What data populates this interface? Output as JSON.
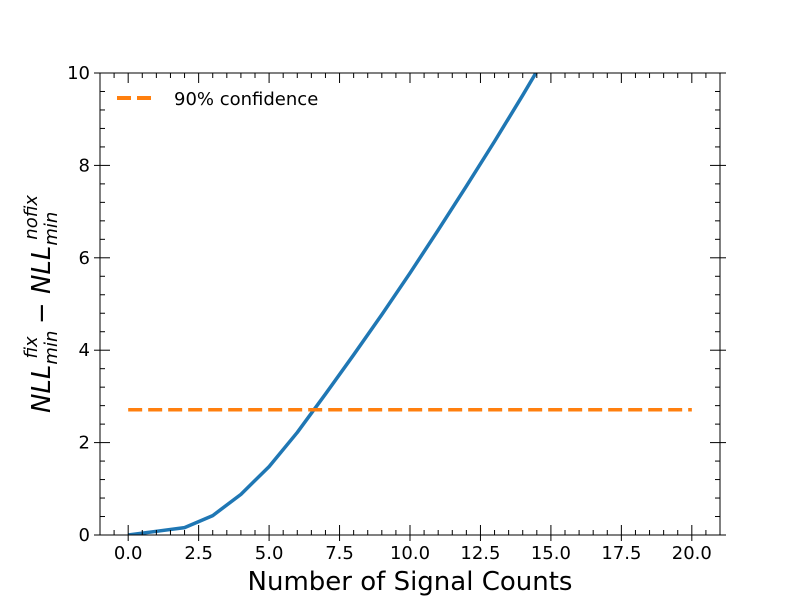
{
  "chart_data": {
    "type": "line",
    "title": "",
    "xlabel": "Number of Signal Counts",
    "ylabel": "NLL_min^fix − NLL_min^nofix",
    "xlim": [
      -1,
      21
    ],
    "ylim": [
      0,
      10
    ],
    "xticks": [
      0.0,
      2.5,
      5.0,
      7.5,
      10.0,
      12.5,
      15.0,
      17.5,
      20.0
    ],
    "xtick_labels": [
      "0.0",
      "2.5",
      "5.0",
      "7.5",
      "10.0",
      "12.5",
      "15.0",
      "17.5",
      "20.0"
    ],
    "yticks": [
      0,
      2,
      4,
      6,
      8,
      10
    ],
    "ytick_labels": [
      "0",
      "2",
      "4",
      "6",
      "8",
      "10"
    ],
    "grid": false,
    "legend": {
      "placement": "top-left",
      "entries": [
        "90% confidence"
      ]
    },
    "series": [
      {
        "color": "#1f77b4",
        "style": "solid",
        "x": [
          0,
          1,
          2,
          3,
          4,
          5,
          6,
          7,
          8,
          9,
          10,
          11,
          12,
          13,
          14,
          15
        ],
        "y": [
          0.0,
          0.08,
          0.16,
          0.42,
          0.88,
          1.48,
          2.22,
          3.05,
          3.9,
          4.77,
          5.67,
          6.6,
          7.55,
          8.52,
          9.52,
          10.55
        ]
      },
      {
        "name": "90% confidence",
        "color": "#ff7f0e",
        "style": "dashed",
        "x": [
          0,
          20
        ],
        "y": [
          2.71,
          2.71
        ]
      }
    ]
  }
}
